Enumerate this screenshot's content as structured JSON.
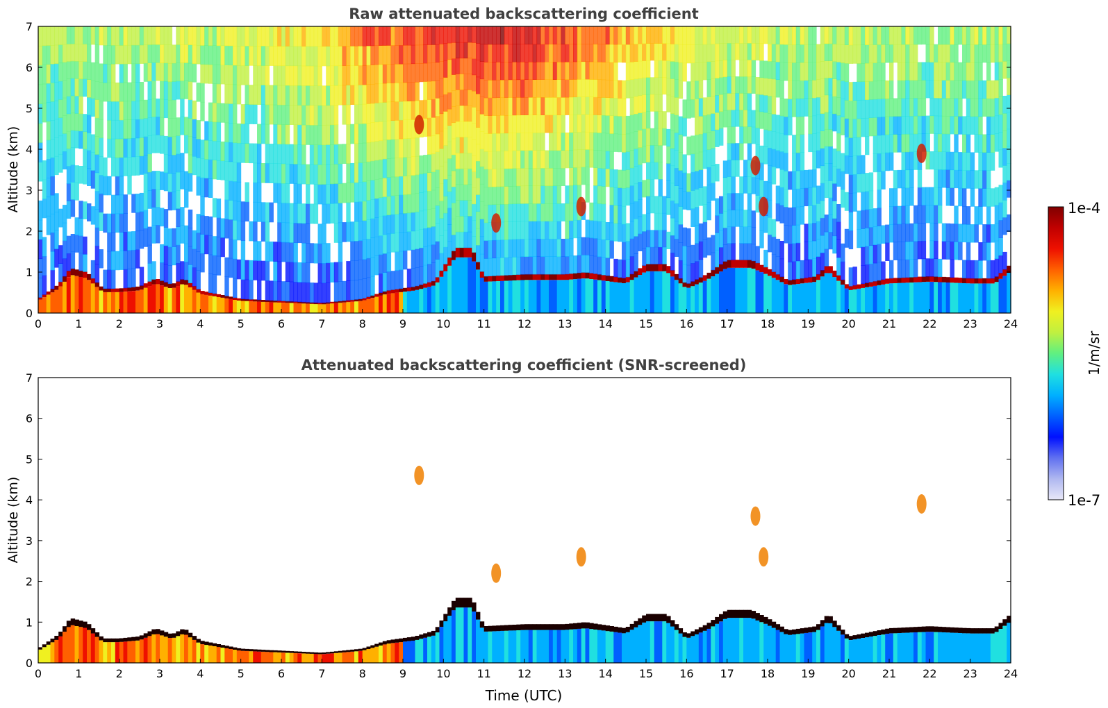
{
  "chart_data": [
    {
      "type": "heatmap",
      "title": "Raw attenuated backscattering coefficient",
      "xlabel": "",
      "ylabel": "Altitude (km)",
      "xlim": [
        0,
        24
      ],
      "ylim": [
        0,
        7
      ],
      "xticks": [
        "0",
        "1",
        "2",
        "3",
        "4",
        "5",
        "6",
        "7",
        "8",
        "9",
        "10",
        "11",
        "12",
        "13",
        "14",
        "15",
        "16",
        "17",
        "18",
        "19",
        "20",
        "21",
        "22",
        "23",
        "24"
      ],
      "yticks": [
        "0",
        "1",
        "2",
        "3",
        "4",
        "5",
        "6",
        "7"
      ],
      "screened": false,
      "boundary_layer_top_km": [
        [
          0,
          0.35
        ],
        [
          0.5,
          0.7
        ],
        [
          0.8,
          1.1
        ],
        [
          1.2,
          1.0
        ],
        [
          1.6,
          0.6
        ],
        [
          2.0,
          0.6
        ],
        [
          2.5,
          0.65
        ],
        [
          2.9,
          0.85
        ],
        [
          3.3,
          0.7
        ],
        [
          3.6,
          0.85
        ],
        [
          4.0,
          0.55
        ],
        [
          5.0,
          0.35
        ],
        [
          6.0,
          0.3
        ],
        [
          7.0,
          0.25
        ],
        [
          8.0,
          0.35
        ],
        [
          8.6,
          0.55
        ],
        [
          9.3,
          0.65
        ],
        [
          9.8,
          0.8
        ],
        [
          10.3,
          1.6
        ],
        [
          10.7,
          1.6
        ],
        [
          11.0,
          0.9
        ],
        [
          12.0,
          0.95
        ],
        [
          13.0,
          0.95
        ],
        [
          13.5,
          1.0
        ],
        [
          14.5,
          0.85
        ],
        [
          15.0,
          1.2
        ],
        [
          15.5,
          1.2
        ],
        [
          16.0,
          0.7
        ],
        [
          16.5,
          0.95
        ],
        [
          17.0,
          1.3
        ],
        [
          17.6,
          1.3
        ],
        [
          18.0,
          1.1
        ],
        [
          18.5,
          0.8
        ],
        [
          19.2,
          0.9
        ],
        [
          19.5,
          1.2
        ],
        [
          20.0,
          0.65
        ],
        [
          21.0,
          0.85
        ],
        [
          22.0,
          0.9
        ],
        [
          23.0,
          0.85
        ],
        [
          23.6,
          0.85
        ],
        [
          24.0,
          1.2
        ]
      ],
      "cloud_features_km": [
        {
          "t": 11.3,
          "alt": 2.2
        },
        {
          "t": 13.4,
          "alt": 2.6
        },
        {
          "t": 17.7,
          "alt": 3.6
        },
        {
          "t": 17.9,
          "alt": 2.6
        },
        {
          "t": 9.4,
          "alt": 4.6
        },
        {
          "t": 21.8,
          "alt": 3.9
        }
      ]
    },
    {
      "type": "heatmap",
      "title": "Attenuated backscattering coefficient (SNR-screened)",
      "xlabel": "Time (UTC)",
      "ylabel": "Altitude (km)",
      "xlim": [
        0,
        24
      ],
      "ylim": [
        0,
        7
      ],
      "xticks": [
        "0",
        "1",
        "2",
        "3",
        "4",
        "5",
        "6",
        "7",
        "8",
        "9",
        "10",
        "11",
        "12",
        "13",
        "14",
        "15",
        "16",
        "17",
        "18",
        "19",
        "20",
        "21",
        "22",
        "23",
        "24"
      ],
      "yticks": [
        "0",
        "1",
        "2",
        "3",
        "4",
        "5",
        "6",
        "7"
      ],
      "screened": true
    }
  ],
  "colorbar": {
    "label": "1/m/sr",
    "max_label": "1e-4",
    "min_label": "1e-7",
    "colors": [
      "#e8e8f8",
      "#b0b8f0",
      "#6070f0",
      "#0010ff",
      "#0060ff",
      "#00b0ff",
      "#20e0e0",
      "#60f080",
      "#c0f040",
      "#f0f020",
      "#ffb000",
      "#ff6000",
      "#ee1000",
      "#c00000",
      "#800000"
    ]
  }
}
